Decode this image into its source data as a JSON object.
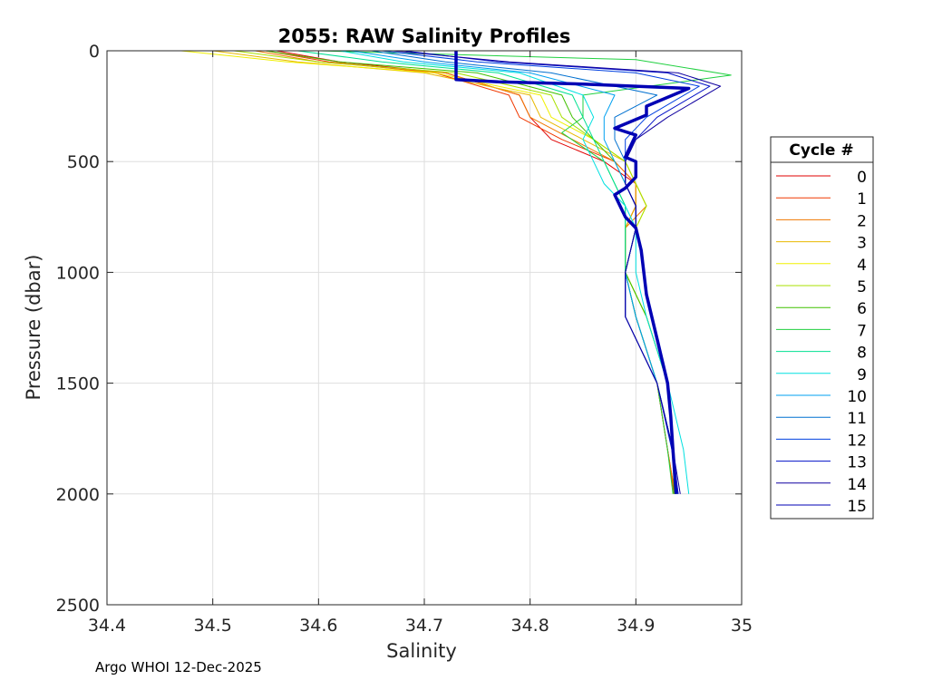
{
  "chart_data": {
    "type": "line",
    "title": "2055: RAW Salinity Profiles",
    "xlabel": "Salinity",
    "ylabel": "Pressure (dbar)",
    "xlim": [
      34.4,
      35
    ],
    "ylim": [
      0,
      2500
    ],
    "y_reversed": true,
    "grid": true,
    "xticks": [
      "34.4",
      "34.5",
      "34.6",
      "34.7",
      "34.8",
      "34.9",
      "35"
    ],
    "yticks": [
      "0",
      "500",
      "1000",
      "1500",
      "2000",
      "2500"
    ],
    "legend_title": "Cycle #",
    "legend_position": "right",
    "series": [
      {
        "name": "0",
        "color": "#e00000",
        "s": [
          34.56,
          34.62,
          34.72,
          34.79,
          34.8,
          34.82,
          34.87,
          34.9,
          34.9,
          34.89,
          34.89,
          34.9,
          34.92,
          34.93,
          34.937
        ],
        "p": [
          0,
          50,
          100,
          200,
          300,
          400,
          500,
          600,
          700,
          800,
          1000,
          1200,
          1500,
          1800,
          2000
        ]
      },
      {
        "name": "1",
        "color": "#f03800",
        "s": [
          34.55,
          34.61,
          34.71,
          34.78,
          34.79,
          34.83,
          34.88,
          34.9,
          34.9,
          34.89,
          34.89,
          34.9,
          34.92,
          34.93,
          34.936
        ],
        "p": [
          0,
          50,
          100,
          200,
          300,
          400,
          500,
          600,
          700,
          800,
          1000,
          1200,
          1500,
          1800,
          2000
        ]
      },
      {
        "name": "2",
        "color": "#f07800",
        "s": [
          34.54,
          34.6,
          34.72,
          34.79,
          34.8,
          34.84,
          34.88,
          34.9,
          34.91,
          34.89,
          34.89,
          34.9,
          34.92,
          34.93,
          34.937
        ],
        "p": [
          0,
          50,
          100,
          200,
          300,
          400,
          500,
          600,
          700,
          800,
          1000,
          1200,
          1500,
          1800,
          2000
        ]
      },
      {
        "name": "3",
        "color": "#e8b800",
        "s": [
          34.5,
          34.58,
          34.7,
          34.8,
          34.81,
          34.85,
          34.89,
          34.9,
          34.9,
          34.89,
          34.89,
          34.91,
          34.93,
          34.935,
          34.938
        ],
        "p": [
          0,
          50,
          100,
          200,
          300,
          400,
          500,
          600,
          700,
          800,
          1000,
          1200,
          1500,
          1800,
          2000
        ]
      },
      {
        "name": "4",
        "color": "#f0f000",
        "s": [
          34.47,
          34.57,
          34.71,
          34.81,
          34.82,
          34.86,
          34.89,
          34.9,
          34.91,
          34.9,
          34.89,
          34.91,
          34.93,
          34.936,
          34.939
        ],
        "p": [
          0,
          50,
          100,
          200,
          300,
          400,
          500,
          600,
          700,
          800,
          1000,
          1200,
          1500,
          1800,
          2000
        ]
      },
      {
        "name": "5",
        "color": "#a8e000",
        "s": [
          34.52,
          34.6,
          34.73,
          34.82,
          34.83,
          34.86,
          34.89,
          34.9,
          34.91,
          34.9,
          34.89,
          34.91,
          34.93,
          34.935,
          34.937
        ],
        "p": [
          0,
          50,
          100,
          200,
          300,
          400,
          500,
          600,
          700,
          800,
          1000,
          1200,
          1500,
          1800,
          2000
        ]
      },
      {
        "name": "6",
        "color": "#40c000",
        "s": [
          34.55,
          34.62,
          34.75,
          34.83,
          34.84,
          34.86,
          34.88,
          34.89,
          34.9,
          34.9,
          34.89,
          34.91,
          34.93,
          34.935,
          34.936
        ],
        "p": [
          0,
          50,
          100,
          200,
          300,
          400,
          500,
          600,
          700,
          800,
          1000,
          1200,
          1500,
          1800,
          2000
        ]
      },
      {
        "name": "7",
        "color": "#20d040",
        "s": [
          34.6,
          34.9,
          34.99,
          34.85,
          34.85,
          34.83,
          34.87,
          34.88,
          34.89,
          34.89,
          34.89,
          34.9,
          34.92,
          34.93,
          34.935
        ],
        "p": [
          0,
          40,
          110,
          200,
          300,
          370,
          500,
          600,
          700,
          800,
          1000,
          1200,
          1500,
          1800,
          2000
        ]
      },
      {
        "name": "8",
        "color": "#00e090",
        "s": [
          34.58,
          34.66,
          34.77,
          34.84,
          34.85,
          34.86,
          34.87,
          34.88,
          34.89,
          34.89,
          34.89,
          34.9,
          34.92,
          34.935,
          34.937
        ],
        "p": [
          0,
          50,
          100,
          200,
          300,
          400,
          500,
          600,
          700,
          800,
          1000,
          1200,
          1500,
          1800,
          2000
        ]
      },
      {
        "name": "9",
        "color": "#00e0e0",
        "s": [
          34.62,
          34.68,
          34.79,
          34.85,
          34.86,
          34.85,
          34.86,
          34.87,
          34.89,
          34.9,
          34.9,
          34.91,
          34.93,
          34.945,
          34.95
        ],
        "p": [
          0,
          50,
          100,
          200,
          300,
          400,
          500,
          600,
          700,
          800,
          1000,
          1200,
          1500,
          1800,
          2000
        ]
      },
      {
        "name": "10",
        "color": "#00a0f0",
        "s": [
          34.63,
          34.7,
          34.8,
          34.88,
          34.87,
          34.87,
          34.88,
          34.89,
          34.9,
          34.9,
          34.89,
          34.9,
          34.92,
          34.935,
          34.938
        ],
        "p": [
          0,
          50,
          100,
          200,
          300,
          400,
          500,
          600,
          700,
          800,
          1000,
          1200,
          1500,
          1800,
          2000
        ]
      },
      {
        "name": "11",
        "color": "#0070d0",
        "s": [
          34.65,
          34.72,
          34.82,
          34.92,
          34.88,
          34.88,
          34.89,
          34.89,
          34.9,
          34.9,
          34.89,
          34.89,
          34.92,
          34.935,
          34.939
        ],
        "p": [
          0,
          50,
          100,
          200,
          300,
          400,
          500,
          600,
          700,
          800,
          1000,
          1200,
          1500,
          1800,
          2000
        ]
      },
      {
        "name": "12",
        "color": "#0040e0",
        "s": [
          34.66,
          34.75,
          34.9,
          34.96,
          34.91,
          34.89,
          34.89,
          34.89,
          34.9,
          34.9,
          34.89,
          34.89,
          34.92,
          34.935,
          34.94
        ],
        "p": [
          0,
          50,
          100,
          160,
          300,
          400,
          500,
          600,
          700,
          800,
          1000,
          1200,
          1500,
          1800,
          2000
        ]
      },
      {
        "name": "13",
        "color": "#0010c8",
        "s": [
          34.68,
          34.77,
          34.93,
          34.97,
          34.92,
          34.9,
          34.89,
          34.89,
          34.9,
          34.9,
          34.89,
          34.89,
          34.92,
          34.934,
          34.94
        ],
        "p": [
          0,
          50,
          100,
          160,
          300,
          400,
          500,
          600,
          700,
          800,
          1000,
          1200,
          1500,
          1800,
          2000
        ]
      },
      {
        "name": "14",
        "color": "#1000a0",
        "s": [
          34.67,
          34.78,
          34.94,
          34.98,
          34.93,
          34.9,
          34.89,
          34.89,
          34.9,
          34.9,
          34.89,
          34.89,
          34.92,
          34.935,
          34.942
        ],
        "p": [
          0,
          50,
          100,
          160,
          300,
          400,
          500,
          600,
          700,
          800,
          1000,
          1200,
          1500,
          1800,
          2000
        ]
      },
      {
        "name": "15",
        "color": "#0000b4",
        "bold": true,
        "s": [
          34.73,
          34.73,
          34.73,
          34.77,
          34.85,
          34.95,
          34.91,
          34.91,
          34.88,
          34.9,
          34.89,
          34.9,
          34.9,
          34.89,
          34.88,
          34.89,
          34.9,
          34.905,
          34.91,
          34.92,
          34.93,
          34.933,
          34.935,
          34.938
        ],
        "p": [
          0,
          50,
          130,
          140,
          150,
          170,
          250,
          290,
          350,
          380,
          480,
          500,
          570,
          620,
          650,
          750,
          800,
          900,
          1100,
          1300,
          1500,
          1650,
          1800,
          2000
        ]
      }
    ]
  },
  "footer": "Argo WHOI 12-Dec-2025"
}
